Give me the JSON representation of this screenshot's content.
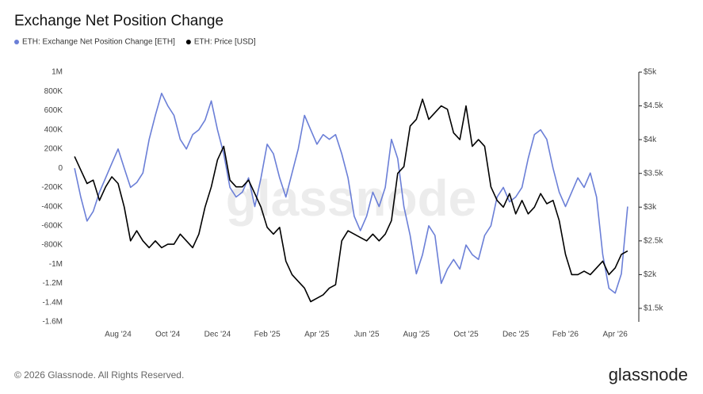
{
  "chart_data": {
    "type": "line",
    "title": "Exchange Net Position Change",
    "watermark": "glassnode",
    "footer": "© 2026 Glassnode. All Rights Reserved.",
    "logo": "glassnode",
    "categories": [
      null,
      null,
      null,
      null,
      null,
      null,
      null,
      "Aug '24",
      null,
      null,
      null,
      null,
      null,
      null,
      null,
      "Oct '24",
      null,
      null,
      null,
      null,
      null,
      null,
      null,
      "Dec '24",
      null,
      null,
      null,
      null,
      null,
      null,
      null,
      "Feb '25",
      null,
      null,
      null,
      null,
      null,
      null,
      null,
      "Apr '25",
      null,
      null,
      null,
      null,
      null,
      null,
      null,
      "Jun '25",
      null,
      null,
      null,
      null,
      null,
      null,
      null,
      "Aug '25",
      null,
      null,
      null,
      null,
      null,
      null,
      null,
      "Oct '25",
      null,
      null,
      null,
      null,
      null,
      null,
      null,
      "Dec '25",
      null,
      null,
      null,
      null,
      null,
      null,
      null,
      "Feb '26",
      null,
      null,
      null,
      null,
      null,
      null,
      null,
      "Apr '26",
      null,
      null
    ],
    "series": [
      {
        "name": "ETH: Exchange Net Position Change [ETH]",
        "color": "#6b7fd7",
        "axis": "y",
        "values": [
          0,
          -300000,
          -550000,
          -450000,
          -250000,
          -100000,
          50000,
          200000,
          0,
          -200000,
          -150000,
          -50000,
          300000,
          550000,
          780000,
          650000,
          550000,
          300000,
          200000,
          350000,
          400000,
          500000,
          700000,
          400000,
          150000,
          -200000,
          -300000,
          -250000,
          -100000,
          -400000,
          -100000,
          250000,
          150000,
          -100000,
          -300000,
          -50000,
          200000,
          550000,
          400000,
          250000,
          350000,
          300000,
          350000,
          150000,
          -100000,
          -500000,
          -650000,
          -500000,
          -250000,
          -400000,
          -200000,
          300000,
          100000,
          -400000,
          -700000,
          -1100000,
          -900000,
          -600000,
          -700000,
          -1200000,
          -1050000,
          -950000,
          -1050000,
          -800000,
          -900000,
          -950000,
          -700000,
          -600000,
          -300000,
          -200000,
          -350000,
          -300000,
          -200000,
          100000,
          350000,
          400000,
          300000,
          0,
          -250000,
          -400000,
          -250000,
          -100000,
          -200000,
          -50000,
          -300000,
          -900000,
          -1250000,
          -1300000,
          -1100000,
          -400000
        ]
      },
      {
        "name": "ETH: Price [USD]",
        "color": "#000000",
        "axis": "y2",
        "values": [
          3750,
          3550,
          3350,
          3400,
          3100,
          3300,
          3450,
          3350,
          3000,
          2500,
          2650,
          2500,
          2400,
          2500,
          2400,
          2450,
          2450,
          2600,
          2500,
          2400,
          2600,
          3000,
          3300,
          3700,
          3900,
          3400,
          3300,
          3300,
          3400,
          3200,
          3000,
          2700,
          2600,
          2700,
          2200,
          2000,
          1900,
          1800,
          1600,
          1650,
          1700,
          1800,
          1850,
          2500,
          2650,
          2600,
          2550,
          2500,
          2600,
          2500,
          2600,
          2800,
          3500,
          3600,
          4200,
          4300,
          4600,
          4300,
          4400,
          4500,
          4450,
          4100,
          4000,
          4500,
          3900,
          4000,
          3900,
          3300,
          3100,
          3000,
          3200,
          2900,
          3100,
          2900,
          3000,
          3200,
          3050,
          3100,
          2800,
          2300,
          2000,
          2000,
          2050,
          2000,
          2100,
          2200,
          2000,
          2100,
          2300,
          2350
        ]
      }
    ],
    "ylim": [
      -1600000,
      1000000
    ],
    "yticks": [
      {
        "value": 1000000,
        "label": "1M"
      },
      {
        "value": 800000,
        "label": "800K"
      },
      {
        "value": 600000,
        "label": "600K"
      },
      {
        "value": 400000,
        "label": "400K"
      },
      {
        "value": 200000,
        "label": "200K"
      },
      0,
      {
        "value": -200000,
        "label": "-200K"
      },
      {
        "value": -400000,
        "label": "-400K"
      },
      {
        "value": -600000,
        "label": "-600K"
      },
      {
        "value": -800000,
        "label": "-800K"
      },
      {
        "value": -1000000,
        "label": "-1M"
      },
      {
        "value": -1200000,
        "label": "-1.2M"
      },
      {
        "value": -1400000,
        "label": "-1.4M"
      },
      {
        "value": -1600000,
        "label": "-1.6M"
      }
    ],
    "y2lim": [
      1300,
      5000
    ],
    "y2ticks": [
      {
        "value": 5000,
        "label": "$5k"
      },
      {
        "value": 4500,
        "label": "$4.5k"
      },
      {
        "value": 4000,
        "label": "$4k"
      },
      {
        "value": 3500,
        "label": "$3.5k"
      },
      {
        "value": 3000,
        "label": "$3k"
      },
      {
        "value": 2500,
        "label": "$2.5k"
      },
      {
        "value": 2000,
        "label": "$2k"
      },
      {
        "value": 1500,
        "label": "$1.5k"
      }
    ],
    "grid": false
  }
}
